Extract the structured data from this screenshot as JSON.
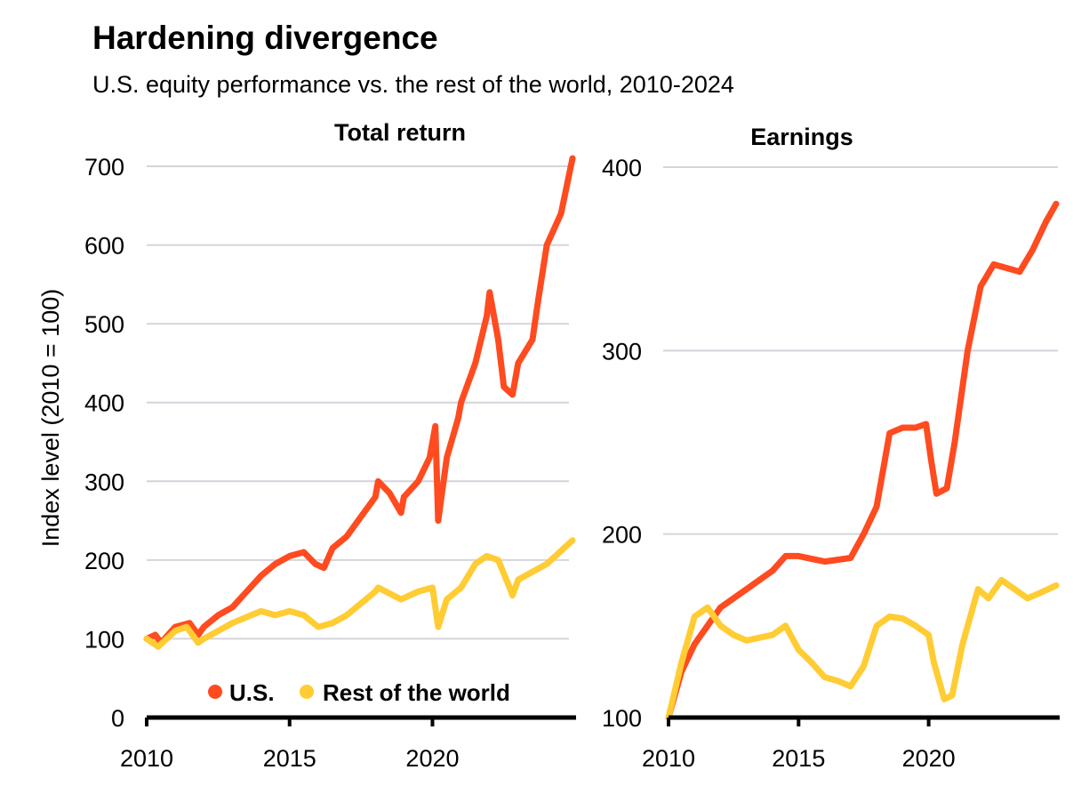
{
  "title": "Hardening divergence",
  "subtitle": "U.S. equity performance vs. the rest of the world, 2010-2024",
  "colors": {
    "us": "#FF4B1F",
    "row": "#FFCC33",
    "grid": "#D4D4DC",
    "axis": "#000000"
  },
  "legend": {
    "placement": "bottom-right of left panel",
    "items": [
      "U.S.",
      "Rest of the world"
    ]
  },
  "chart_data": [
    {
      "type": "line",
      "title": "Total return",
      "ylabel": "Index level (2010 = 100)",
      "xlabel": "",
      "xlim": [
        2010,
        2024.9
      ],
      "ylim": [
        0,
        700
      ],
      "yticks": [
        0,
        100,
        200,
        300,
        400,
        500,
        600,
        700
      ],
      "xticks": [
        2010,
        2015,
        2020
      ],
      "grid": true,
      "series": [
        {
          "name": "U.S.",
          "x": [
            2010,
            2010.3,
            2010.5,
            2011,
            2011.5,
            2011.8,
            2012,
            2012.5,
            2013,
            2013.5,
            2014,
            2014.5,
            2015,
            2015.5,
            2015.9,
            2016.2,
            2016.5,
            2017,
            2017.5,
            2018,
            2018.1,
            2018.5,
            2018.9,
            2019,
            2019.5,
            2019.9,
            2020.1,
            2020.2,
            2020.5,
            2020.9,
            2021,
            2021.5,
            2021.9,
            2022,
            2022.3,
            2022.5,
            2022.8,
            2023,
            2023.5,
            2023.7,
            2024,
            2024.5,
            2024.9
          ],
          "y": [
            100,
            105,
            95,
            115,
            120,
            105,
            115,
            130,
            140,
            160,
            180,
            195,
            205,
            210,
            195,
            190,
            215,
            230,
            255,
            280,
            300,
            285,
            260,
            280,
            300,
            330,
            370,
            250,
            330,
            380,
            400,
            450,
            510,
            540,
            480,
            420,
            410,
            450,
            480,
            530,
            600,
            640,
            710
          ]
        },
        {
          "name": "Rest of the world",
          "x": [
            2010,
            2010.4,
            2011,
            2011.4,
            2011.8,
            2012,
            2012.5,
            2013,
            2014,
            2014.5,
            2015,
            2015.5,
            2016,
            2016.5,
            2017,
            2018,
            2018.1,
            2018.9,
            2019.2,
            2019.5,
            2020,
            2020.2,
            2020.5,
            2021,
            2021.5,
            2021.9,
            2022.3,
            2022.7,
            2022.8,
            2023,
            2023.5,
            2024,
            2024.9
          ],
          "y": [
            100,
            90,
            110,
            115,
            95,
            100,
            110,
            120,
            135,
            130,
            135,
            130,
            115,
            120,
            130,
            160,
            165,
            150,
            155,
            160,
            165,
            115,
            150,
            165,
            195,
            205,
            200,
            165,
            155,
            175,
            185,
            195,
            225
          ]
        }
      ]
    },
    {
      "type": "line",
      "title": "Earnings",
      "xlabel": "",
      "ylabel": "",
      "xlim": [
        2010,
        2024.9
      ],
      "ylim": [
        100,
        400
      ],
      "yticks": [
        100,
        200,
        300,
        400
      ],
      "xticks": [
        2010,
        2015,
        2020
      ],
      "grid": true,
      "series": [
        {
          "name": "U.S.",
          "x": [
            2010,
            2010.5,
            2011,
            2011.5,
            2012,
            2012.5,
            2013,
            2014,
            2014.5,
            2015,
            2016,
            2017,
            2017.5,
            2018,
            2018.5,
            2019,
            2019.5,
            2019.9,
            2020.1,
            2020.3,
            2020.7,
            2021,
            2021.5,
            2022,
            2022.5,
            2023,
            2023.5,
            2024,
            2024.5,
            2024.9
          ],
          "y": [
            100,
            125,
            140,
            150,
            160,
            165,
            170,
            180,
            188,
            188,
            185,
            187,
            200,
            215,
            255,
            258,
            258,
            260,
            240,
            222,
            225,
            250,
            300,
            335,
            347,
            345,
            343,
            355,
            370,
            380
          ]
        },
        {
          "name": "Rest of the world",
          "x": [
            2010,
            2010.5,
            2011,
            2011.5,
            2012,
            2012.5,
            2013,
            2014,
            2014.5,
            2015,
            2015.5,
            2016,
            2016.5,
            2017,
            2017.5,
            2018,
            2018.5,
            2019,
            2019.5,
            2020,
            2020.2,
            2020.6,
            2020.9,
            2021.3,
            2021.9,
            2022.3,
            2022.8,
            2023.3,
            2023.8,
            2024.3,
            2024.9
          ],
          "y": [
            100,
            130,
            155,
            160,
            150,
            145,
            142,
            145,
            150,
            137,
            130,
            122,
            120,
            117,
            128,
            150,
            155,
            154,
            150,
            145,
            130,
            110,
            112,
            140,
            170,
            165,
            175,
            170,
            165,
            168,
            172
          ]
        }
      ]
    }
  ]
}
